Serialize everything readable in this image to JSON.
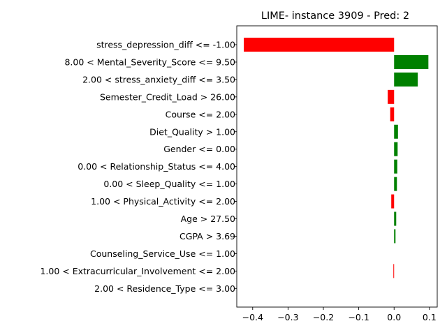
{
  "chart_data": {
    "type": "bar",
    "orientation": "horizontal",
    "title": "LIME- instance 3909 - Pred: 2",
    "xlabel": "",
    "ylabel": "",
    "xlim": [
      -0.445,
      0.122
    ],
    "x_ticks": [
      -0.4,
      -0.3,
      -0.2,
      -0.1,
      0.0,
      0.1
    ],
    "x_tick_labels": [
      "−0.4",
      "−0.3",
      "−0.2",
      "−0.1",
      "0.0",
      "0.1"
    ],
    "colors": {
      "positive": "#008000",
      "negative": "#ff0000"
    },
    "grid": false,
    "categories": [
      "stress_depression_diff <= -1.00",
      "8.00 < Mental_Severity_Score <= 9.50",
      "2.00 < stress_anxiety_diff <= 3.50",
      "Semester_Credit_Load > 26.00",
      "Course <= 2.00",
      "Diet_Quality > 1.00",
      "Gender <= 0.00",
      "0.00 < Relationship_Status <= 4.00",
      "0.00 < Sleep_Quality <= 1.00",
      "1.00 < Physical_Activity <= 2.00",
      "Age > 27.50",
      "CGPA > 3.69",
      "Counseling_Service_Use <= 1.00",
      "1.00 < Extracurricular_Involvement <= 2.00",
      "2.00 < Residence_Type <= 3.00"
    ],
    "values": [
      -0.425,
      0.097,
      0.067,
      -0.018,
      -0.011,
      0.011,
      0.01,
      0.009,
      0.008,
      -0.008,
      0.006,
      0.004,
      0.0,
      -0.002,
      0.0
    ]
  }
}
